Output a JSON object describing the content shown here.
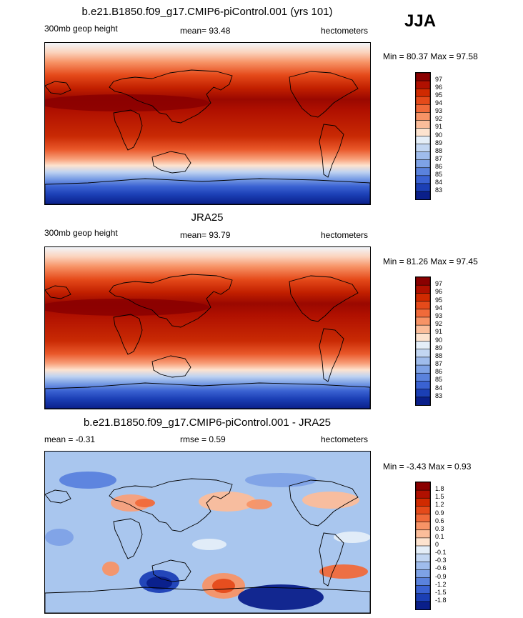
{
  "season": "JJA",
  "chart_data": [
    {
      "type": "heatmap",
      "title": "b.e21.B1850.f09_g17.CMIP6-piControl.001 (yrs 101)",
      "left_label": "300mb geop height",
      "mean_text": "mean=  93.48",
      "units": "hectometers",
      "minmax_text": "Min =  80.37 Max =  97.58",
      "min": 80.37,
      "max": 97.58,
      "colorbar_labels": [
        "97",
        "96",
        "95",
        "94",
        "93",
        "92",
        "91",
        "90",
        "89",
        "88",
        "87",
        "86",
        "85",
        "84",
        "83"
      ],
      "colorbar_colors": [
        "#8a0000",
        "#b01000",
        "#d02a00",
        "#e54a1a",
        "#f06a3a",
        "#f79366",
        "#fbbd9a",
        "#fde3cf",
        "#e4eef8",
        "#c2d6f2",
        "#9fbcec",
        "#7ea2e6",
        "#5a82dd",
        "#3a62d2",
        "#1b3fb5",
        "#0a1f8a"
      ]
    },
    {
      "type": "heatmap",
      "title": "JRA25",
      "left_label": "300mb geop height",
      "mean_text": "mean=  93.79",
      "units": "hectometers",
      "minmax_text": "Min =  81.26 Max =  97.45",
      "min": 81.26,
      "max": 97.45,
      "colorbar_labels": [
        "97",
        "96",
        "95",
        "94",
        "93",
        "92",
        "91",
        "90",
        "89",
        "88",
        "87",
        "86",
        "85",
        "84",
        "83"
      ],
      "colorbar_colors": [
        "#8a0000",
        "#b01000",
        "#d02a00",
        "#e54a1a",
        "#f06a3a",
        "#f79366",
        "#fbbd9a",
        "#fde3cf",
        "#e4eef8",
        "#c2d6f2",
        "#9fbcec",
        "#7ea2e6",
        "#5a82dd",
        "#3a62d2",
        "#1b3fb5",
        "#0a1f8a"
      ]
    },
    {
      "type": "heatmap",
      "title": "b.e21.B1850.f09_g17.CMIP6-piControl.001 - JRA25",
      "left_label": "mean =  -0.31",
      "mean_text": "rmse =   0.59",
      "units": "hectometers",
      "minmax_text": "Min =  -3.43 Max =   0.93",
      "min": -3.43,
      "max": 0.93,
      "colorbar_labels": [
        "1.8",
        "1.5",
        "1.2",
        "0.9",
        "0.6",
        "0.3",
        "0.1",
        "0",
        "-0.1",
        "-0.3",
        "-0.6",
        "-0.9",
        "-1.2",
        "-1.5",
        "-1.8"
      ],
      "colorbar_colors": [
        "#8a0000",
        "#b01000",
        "#d02a00",
        "#e54a1a",
        "#f06a3a",
        "#f79366",
        "#fbbd9a",
        "#fde3cf",
        "#e4eef8",
        "#c2d6f2",
        "#9fbcec",
        "#7ea2e6",
        "#5a82dd",
        "#3a62d2",
        "#1b3fb5",
        "#0a1f8a"
      ]
    }
  ]
}
